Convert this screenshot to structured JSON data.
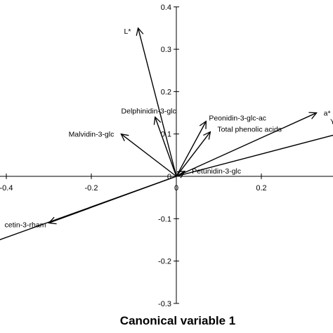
{
  "chart_data": {
    "type": "scatter",
    "subtype": "biplot-vectors",
    "title": "",
    "xlabel": "Canonical variable 1",
    "ylabel": "",
    "xlim": [
      -0.42,
      0.37
    ],
    "ylim": [
      -0.3,
      0.4
    ],
    "grid": false,
    "x_ticks": [
      {
        "value": -0.4,
        "label": "-0.4"
      },
      {
        "value": -0.2,
        "label": "-0.2"
      },
      {
        "value": 0,
        "label": "0"
      },
      {
        "value": 0.2,
        "label": "0.2"
      }
    ],
    "y_ticks": [
      {
        "value": 0.4,
        "label": "0.4"
      },
      {
        "value": 0.3,
        "label": "0.3"
      },
      {
        "value": 0.2,
        "label": "0.2"
      },
      {
        "value": 0.1,
        "label": "0.1"
      },
      {
        "value": 0,
        "label": "0"
      },
      {
        "value": -0.1,
        "label": "-0.1"
      },
      {
        "value": -0.2,
        "label": "-0.2"
      },
      {
        "value": -0.3,
        "label": "-0.3"
      }
    ],
    "vectors": [
      {
        "label": "L*",
        "x": -0.09,
        "y": 0.35
      },
      {
        "label": "Delphinidin-3-glc",
        "x": -0.05,
        "y": 0.14
      },
      {
        "label": "Malvidin-3-glc",
        "x": -0.13,
        "y": 0.1
      },
      {
        "label": "Peonidin-3-glc-ac",
        "x": 0.07,
        "y": 0.13
      },
      {
        "label": "Total phenolic acids",
        "x": 0.08,
        "y": 0.105
      },
      {
        "label": "a*",
        "x": 0.33,
        "y": 0.15
      },
      {
        "label": "Y",
        "x": 0.38,
        "y": 0.1
      },
      {
        "label": "Petunidin-3-glc",
        "x": 0.02,
        "y": 0.012
      },
      {
        "label": "cetin-3-rham",
        "x": -0.3,
        "y": -0.11
      },
      {
        "label": "",
        "x": -0.43,
        "y": -0.155
      }
    ]
  }
}
